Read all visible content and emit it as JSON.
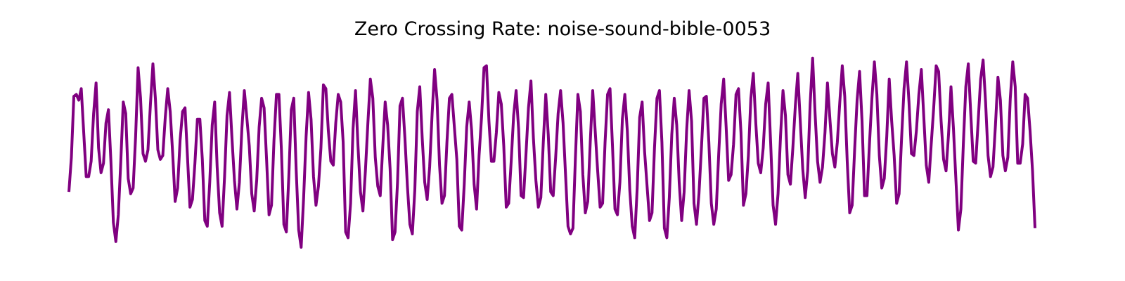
{
  "chart_data": {
    "type": "line",
    "title": "Zero Crossing Rate: noise-sound-bible-0053",
    "xlabel": "",
    "ylabel": "",
    "axes_visible": false,
    "grid": false,
    "ylim": [
      0.0,
      1.0
    ],
    "series": [
      {
        "color": "#800080",
        "values": [
          0.29,
          0.47,
          0.79,
          0.8,
          0.77,
          0.83,
          0.6,
          0.37,
          0.37,
          0.45,
          0.7,
          0.86,
          0.52,
          0.39,
          0.44,
          0.65,
          0.72,
          0.45,
          0.13,
          0.03,
          0.17,
          0.45,
          0.76,
          0.7,
          0.36,
          0.28,
          0.31,
          0.58,
          0.94,
          0.78,
          0.49,
          0.45,
          0.51,
          0.75,
          0.96,
          0.78,
          0.51,
          0.46,
          0.48,
          0.68,
          0.83,
          0.71,
          0.49,
          0.24,
          0.31,
          0.56,
          0.71,
          0.73,
          0.47,
          0.21,
          0.25,
          0.44,
          0.67,
          0.67,
          0.46,
          0.14,
          0.11,
          0.34,
          0.64,
          0.76,
          0.42,
          0.18,
          0.11,
          0.37,
          0.69,
          0.81,
          0.57,
          0.35,
          0.2,
          0.34,
          0.62,
          0.82,
          0.68,
          0.53,
          0.28,
          0.19,
          0.35,
          0.63,
          0.78,
          0.73,
          0.46,
          0.17,
          0.22,
          0.56,
          0.8,
          0.8,
          0.51,
          0.12,
          0.08,
          0.37,
          0.72,
          0.78,
          0.4,
          0.09,
          0.0,
          0.26,
          0.58,
          0.81,
          0.67,
          0.37,
          0.22,
          0.32,
          0.52,
          0.85,
          0.83,
          0.61,
          0.45,
          0.43,
          0.65,
          0.8,
          0.76,
          0.55,
          0.08,
          0.05,
          0.23,
          0.62,
          0.82,
          0.53,
          0.29,
          0.19,
          0.4,
          0.65,
          0.88,
          0.78,
          0.47,
          0.32,
          0.27,
          0.52,
          0.76,
          0.64,
          0.41,
          0.04,
          0.08,
          0.34,
          0.74,
          0.78,
          0.57,
          0.32,
          0.12,
          0.07,
          0.3,
          0.71,
          0.84,
          0.57,
          0.34,
          0.25,
          0.42,
          0.7,
          0.93,
          0.77,
          0.43,
          0.23,
          0.27,
          0.55,
          0.78,
          0.8,
          0.63,
          0.46,
          0.11,
          0.09,
          0.33,
          0.63,
          0.76,
          0.61,
          0.33,
          0.2,
          0.48,
          0.68,
          0.94,
          0.95,
          0.66,
          0.45,
          0.45,
          0.6,
          0.81,
          0.75,
          0.53,
          0.21,
          0.23,
          0.45,
          0.69,
          0.82,
          0.62,
          0.27,
          0.26,
          0.49,
          0.73,
          0.87,
          0.57,
          0.35,
          0.21,
          0.26,
          0.55,
          0.8,
          0.59,
          0.29,
          0.27,
          0.47,
          0.7,
          0.82,
          0.65,
          0.38,
          0.11,
          0.07,
          0.1,
          0.47,
          0.8,
          0.71,
          0.38,
          0.18,
          0.24,
          0.55,
          0.82,
          0.61,
          0.4,
          0.21,
          0.23,
          0.55,
          0.8,
          0.83,
          0.53,
          0.2,
          0.17,
          0.34,
          0.67,
          0.8,
          0.61,
          0.3,
          0.11,
          0.05,
          0.31,
          0.68,
          0.76,
          0.5,
          0.32,
          0.14,
          0.18,
          0.52,
          0.78,
          0.82,
          0.55,
          0.1,
          0.05,
          0.26,
          0.59,
          0.78,
          0.64,
          0.34,
          0.14,
          0.29,
          0.61,
          0.82,
          0.66,
          0.23,
          0.12,
          0.28,
          0.52,
          0.78,
          0.79,
          0.55,
          0.23,
          0.12,
          0.2,
          0.49,
          0.75,
          0.88,
          0.63,
          0.35,
          0.38,
          0.54,
          0.8,
          0.83,
          0.6,
          0.22,
          0.28,
          0.48,
          0.78,
          0.91,
          0.65,
          0.44,
          0.39,
          0.52,
          0.75,
          0.86,
          0.55,
          0.22,
          0.12,
          0.28,
          0.58,
          0.82,
          0.69,
          0.38,
          0.33,
          0.52,
          0.74,
          0.91,
          0.66,
          0.41,
          0.26,
          0.4,
          0.75,
          0.99,
          0.7,
          0.45,
          0.34,
          0.42,
          0.6,
          0.86,
          0.67,
          0.49,
          0.42,
          0.55,
          0.76,
          0.95,
          0.79,
          0.45,
          0.18,
          0.22,
          0.51,
          0.77,
          0.92,
          0.66,
          0.27,
          0.27,
          0.54,
          0.78,
          0.97,
          0.8,
          0.48,
          0.31,
          0.36,
          0.58,
          0.88,
          0.66,
          0.48,
          0.23,
          0.28,
          0.57,
          0.83,
          0.97,
          0.76,
          0.49,
          0.48,
          0.61,
          0.8,
          0.93,
          0.68,
          0.43,
          0.34,
          0.54,
          0.73,
          0.95,
          0.92,
          0.66,
          0.46,
          0.4,
          0.59,
          0.84,
          0.62,
          0.35,
          0.09,
          0.2,
          0.54,
          0.84,
          0.96,
          0.7,
          0.45,
          0.44,
          0.66,
          0.88,
          0.98,
          0.76,
          0.48,
          0.37,
          0.42,
          0.64,
          0.89,
          0.77,
          0.48,
          0.4,
          0.47,
          0.78,
          0.97,
          0.84,
          0.44,
          0.44,
          0.54,
          0.8,
          0.78,
          0.61,
          0.4,
          0.1
        ]
      }
    ]
  }
}
